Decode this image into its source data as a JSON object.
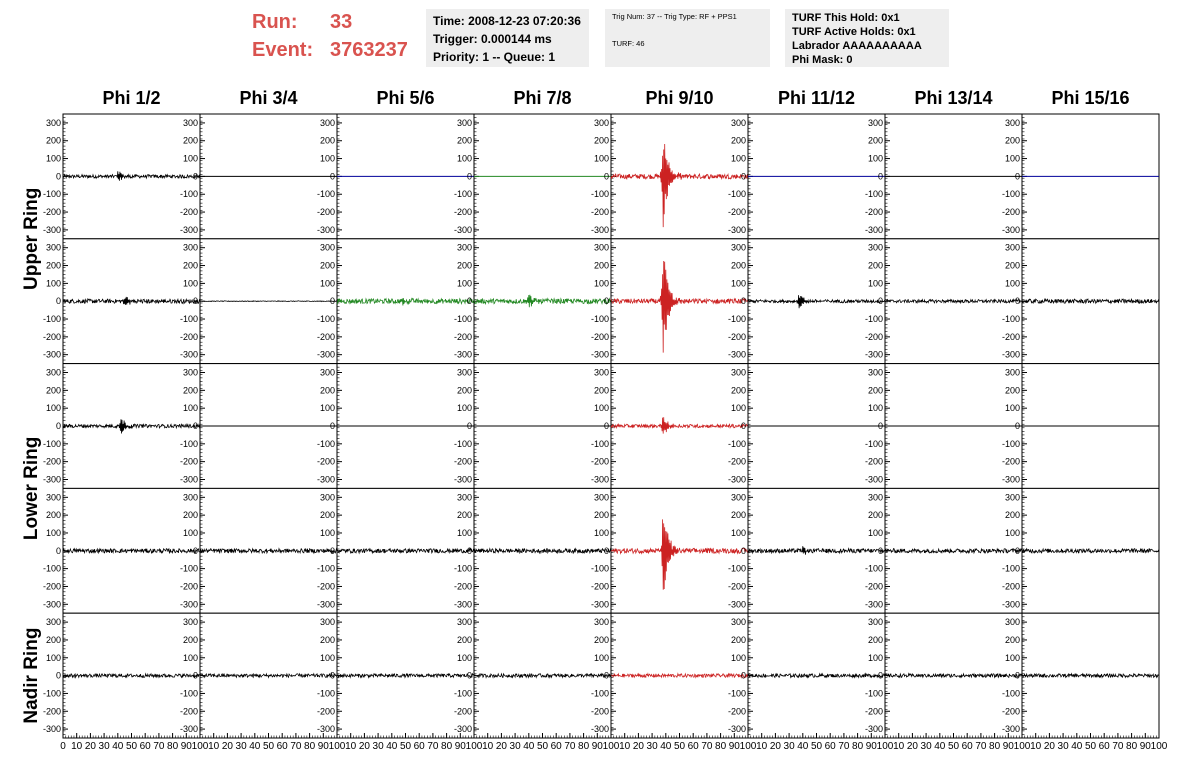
{
  "header": {
    "run_label": "Run:",
    "run_value": "33",
    "event_label": "Event:",
    "event_value": "3763237",
    "info1": [
      "Time: 2008-12-23 07:20:36",
      "Trigger: 0.000144 ms",
      "Priority: 1 -- Queue: 1"
    ],
    "info2": [
      "Trig Num: 37 -- Trig Type: RF + PPS1",
      "TURF: 46"
    ],
    "info3": [
      "TURF This Hold: 0x1",
      "TURF Active Holds: 0x1",
      "Labrador AAAAAAAAAA",
      "Phi Mask: 0"
    ]
  },
  "colors": {
    "red": "#cc2222",
    "green": "#228822",
    "blue": "#000099",
    "black": "#000000",
    "header_text": "#d9534f"
  },
  "chart_data": {
    "type": "line",
    "columns": [
      "Phi 1/2",
      "Phi 3/4",
      "Phi 5/6",
      "Phi 7/8",
      "Phi 9/10",
      "Phi 11/12",
      "Phi 13/14",
      "Phi 15/16"
    ],
    "rows": [
      "Upper Ring",
      "Lower Ring",
      "Nadir Ring"
    ],
    "ylim": [
      -350,
      350
    ],
    "y_ticks": [
      "300",
      "200",
      "100",
      "0",
      "-100",
      "-200",
      "-300"
    ],
    "xlim": [
      0,
      100
    ],
    "x_ticks_first": [
      "0",
      "10",
      "20",
      "30",
      "40",
      "50",
      "60",
      "70",
      "80",
      "90",
      "100"
    ],
    "x_ticks": [
      "10",
      "20",
      "30",
      "40",
      "50",
      "60",
      "70",
      "80",
      "90",
      "100"
    ],
    "x_ticks_last": [
      "10",
      "20",
      "30",
      "40",
      "50",
      "60",
      "70",
      "80",
      "90",
      "100"
    ],
    "panels": [
      [
        {
          "color": "black",
          "amp": 10,
          "burst": 35,
          "burst_pos": 40,
          "flat": false
        },
        {
          "color": "black",
          "amp": 0,
          "burst": 0,
          "burst_pos": 40,
          "flat": true
        },
        {
          "color": "blue",
          "amp": 0,
          "burst": 0,
          "burst_pos": 40,
          "flat": true
        },
        {
          "color": "green",
          "amp": 0,
          "burst": 0,
          "burst_pos": 40,
          "flat": true
        },
        {
          "color": "red",
          "amp": 14,
          "burst": 310,
          "burst_pos": 38,
          "flat": false
        },
        {
          "color": "blue",
          "amp": 0,
          "burst": 0,
          "burst_pos": 40,
          "flat": true
        },
        {
          "color": "black",
          "amp": 0,
          "burst": 0,
          "burst_pos": 40,
          "flat": true
        },
        {
          "color": "blue",
          "amp": 0,
          "burst": 0,
          "burst_pos": 40,
          "flat": true
        }
      ],
      [
        {
          "color": "black",
          "amp": 12,
          "burst": 30,
          "burst_pos": 45,
          "flat": false
        },
        {
          "color": "black",
          "amp": 2,
          "burst": 0,
          "burst_pos": 40,
          "flat": false
        },
        {
          "color": "green",
          "amp": 14,
          "burst": 28,
          "burst_pos": 48,
          "flat": false
        },
        {
          "color": "green",
          "amp": 14,
          "burst": 45,
          "burst_pos": 40,
          "flat": false
        },
        {
          "color": "red",
          "amp": 14,
          "burst": 330,
          "burst_pos": 38,
          "flat": false
        },
        {
          "color": "black",
          "amp": 9,
          "burst": 45,
          "burst_pos": 37,
          "flat": false
        },
        {
          "color": "black",
          "amp": 9,
          "burst": 0,
          "burst_pos": 40,
          "flat": false
        },
        {
          "color": "black",
          "amp": 12,
          "burst": 0,
          "burst_pos": 40,
          "flat": false
        }
      ],
      [
        {
          "color": "black",
          "amp": 10,
          "burst": 55,
          "burst_pos": 42,
          "flat": false
        },
        {
          "color": "black",
          "amp": 0,
          "burst": 0,
          "burst_pos": 40,
          "flat": true
        },
        {
          "color": "black",
          "amp": 0,
          "burst": 0,
          "burst_pos": 40,
          "flat": true
        },
        {
          "color": "black",
          "amp": 0,
          "burst": 0,
          "burst_pos": 40,
          "flat": true
        },
        {
          "color": "red",
          "amp": 10,
          "burst": 60,
          "burst_pos": 38,
          "flat": false
        },
        {
          "color": "black",
          "amp": 0,
          "burst": 0,
          "burst_pos": 40,
          "flat": true
        },
        {
          "color": "black",
          "amp": 0,
          "burst": 0,
          "burst_pos": 40,
          "flat": true
        },
        {
          "color": "black",
          "amp": 0,
          "burst": 0,
          "burst_pos": 40,
          "flat": true
        }
      ],
      [
        {
          "color": "black",
          "amp": 12,
          "burst": 0,
          "burst_pos": 40,
          "flat": false
        },
        {
          "color": "black",
          "amp": 12,
          "burst": 0,
          "burst_pos": 40,
          "flat": false
        },
        {
          "color": "black",
          "amp": 12,
          "burst": 0,
          "burst_pos": 40,
          "flat": false
        },
        {
          "color": "black",
          "amp": 12,
          "burst": 0,
          "burst_pos": 40,
          "flat": false
        },
        {
          "color": "red",
          "amp": 14,
          "burst": 280,
          "burst_pos": 38,
          "flat": false
        },
        {
          "color": "black",
          "amp": 12,
          "burst": 20,
          "burst_pos": 40,
          "flat": false
        },
        {
          "color": "black",
          "amp": 12,
          "burst": 0,
          "burst_pos": 40,
          "flat": false
        },
        {
          "color": "black",
          "amp": 12,
          "burst": 0,
          "burst_pos": 40,
          "flat": false
        }
      ],
      [
        {
          "color": "black",
          "amp": 10,
          "burst": 0,
          "burst_pos": 40,
          "flat": false
        },
        {
          "color": "black",
          "amp": 10,
          "burst": 0,
          "burst_pos": 40,
          "flat": false
        },
        {
          "color": "black",
          "amp": 10,
          "burst": 0,
          "burst_pos": 40,
          "flat": false
        },
        {
          "color": "black",
          "amp": 10,
          "burst": 0,
          "burst_pos": 40,
          "flat": false
        },
        {
          "color": "red",
          "amp": 10,
          "burst": 0,
          "burst_pos": 40,
          "flat": false
        },
        {
          "color": "black",
          "amp": 10,
          "burst": 0,
          "burst_pos": 40,
          "flat": false
        },
        {
          "color": "black",
          "amp": 10,
          "burst": 0,
          "burst_pos": 40,
          "flat": false
        },
        {
          "color": "black",
          "amp": 10,
          "burst": 0,
          "burst_pos": 40,
          "flat": false
        }
      ]
    ]
  }
}
